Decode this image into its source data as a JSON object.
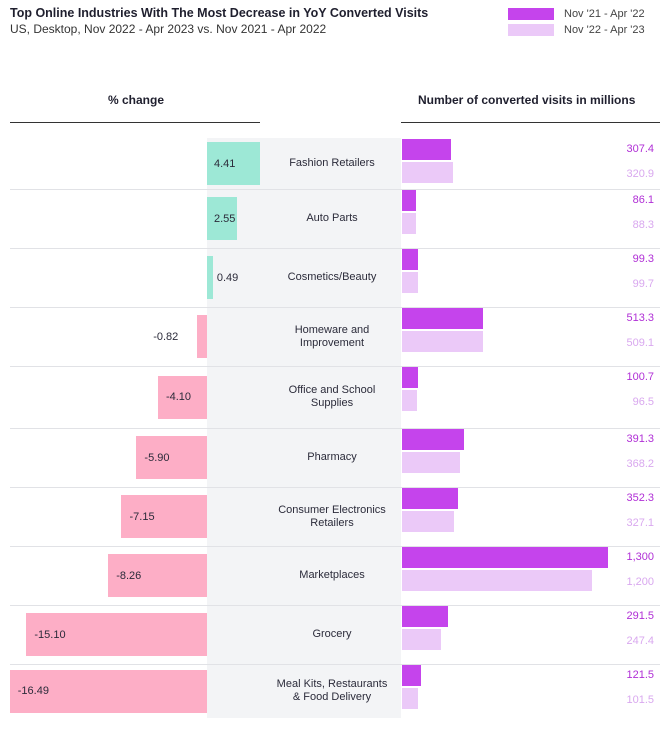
{
  "chart_data": {
    "type": "bar",
    "title": "Top Online Industries With The Most Decrease in YoY Converted Visits",
    "subtitle": "US, Desktop, Nov 2022 - Apr 2023 vs. Nov 2021 - Apr 2022",
    "left_header": "% change",
    "right_header": "Number of converted visits in millions",
    "legend": [
      {
        "name": "Nov '21 - Apr '22",
        "color": "#c544ec"
      },
      {
        "name": "Nov '22 - Apr '23",
        "color": "#ebc9f8"
      }
    ],
    "colors": {
      "positive": "#9de8d6",
      "negative": "#fdaec6"
    },
    "categories": [
      [
        "Fashion Retailers"
      ],
      [
        "Auto Parts"
      ],
      [
        "Cosmetics/Beauty"
      ],
      [
        "Homeware and",
        "Improvement"
      ],
      [
        "Office and School",
        "Supplies"
      ],
      [
        "Pharmacy"
      ],
      [
        "Consumer Electronics",
        "Retailers"
      ],
      [
        "Marketplaces"
      ],
      [
        "Grocery"
      ],
      [
        "Meal Kits, Restaurants",
        "& Food Delivery"
      ]
    ],
    "pct_change": [
      4.41,
      2.55,
      0.49,
      -0.82,
      -4.1,
      -5.9,
      -7.15,
      -8.26,
      -15.1,
      -16.49
    ],
    "pct_labels": [
      "4.41",
      "2.55",
      "0.49",
      "-0.82",
      "-4.10",
      "-5.90",
      "-7.15",
      "-8.26",
      "-15.10",
      "-16.49"
    ],
    "series": [
      {
        "name": "Nov '21 - Apr '22",
        "values": [
          307.4,
          86.1,
          99.3,
          513.3,
          100.7,
          391.3,
          352.3,
          1300,
          291.5,
          121.5
        ],
        "labels": [
          "307.4",
          "86.1",
          "99.3",
          "513.3",
          "100.7",
          "391.3",
          "352.3",
          "1,300",
          "291.5",
          "121.5"
        ]
      },
      {
        "name": "Nov '22 - Apr '23",
        "values": [
          320.9,
          88.3,
          99.7,
          509.1,
          96.5,
          368.2,
          327.1,
          1200,
          247.4,
          101.5
        ],
        "labels": [
          "320.9",
          "88.3",
          "99.7",
          "509.1",
          "96.5",
          "368.2",
          "327.1",
          "1,200",
          "247.4",
          "101.5"
        ]
      }
    ]
  }
}
